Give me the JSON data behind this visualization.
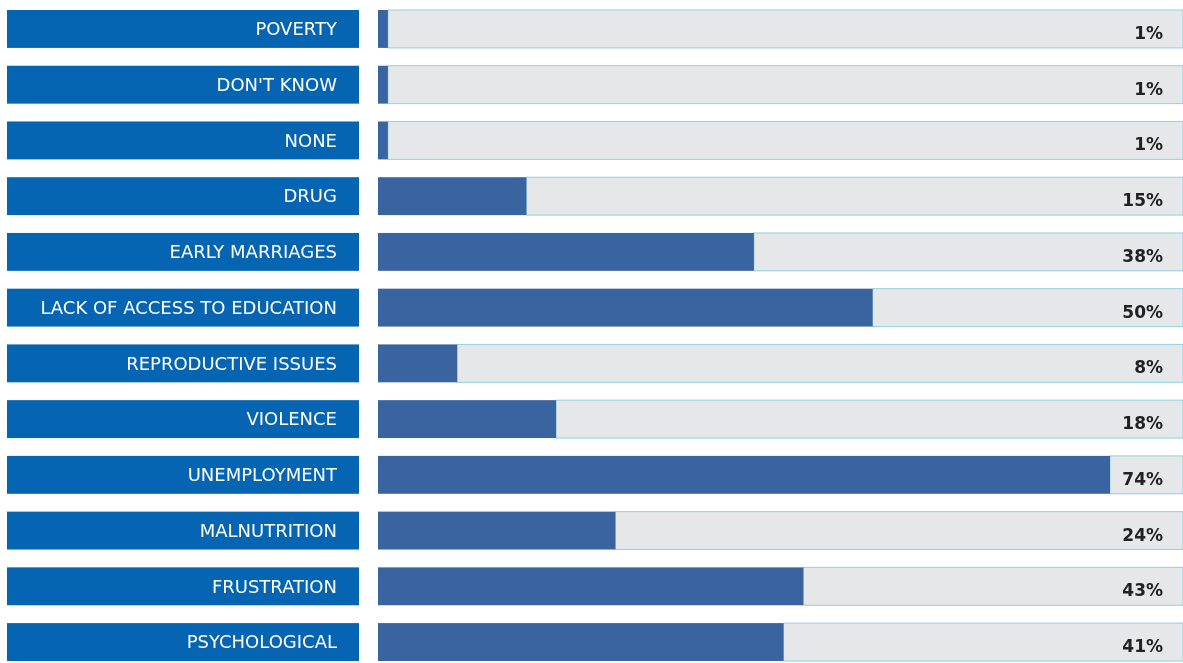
{
  "chart_data": {
    "type": "bar",
    "orientation": "horizontal",
    "categories": [
      "POVERTY",
      "DON'T KNOW",
      "NONE",
      "DRUG",
      "EARLY MARRIAGES",
      "LACK OF ACCESS TO EDUCATION",
      "REPRODUCTIVE ISSUES",
      "VIOLENCE",
      "UNEMPLOYMENT",
      "MALNUTRITION",
      "FRUSTRATION",
      "PSYCHOLOGICAL"
    ],
    "series": [
      {
        "color": "#3a64a0",
        "values": [
          1,
          1,
          1,
          15,
          38,
          50,
          8,
          18,
          74,
          24,
          43,
          41
        ],
        "value_labels": [
          "1%",
          "1%",
          "1%",
          "15%",
          "38%",
          "50%",
          "8%",
          "18%",
          "74%",
          "24%",
          "43%",
          "41%"
        ]
      }
    ],
    "tick_labels": "y"
  }
}
